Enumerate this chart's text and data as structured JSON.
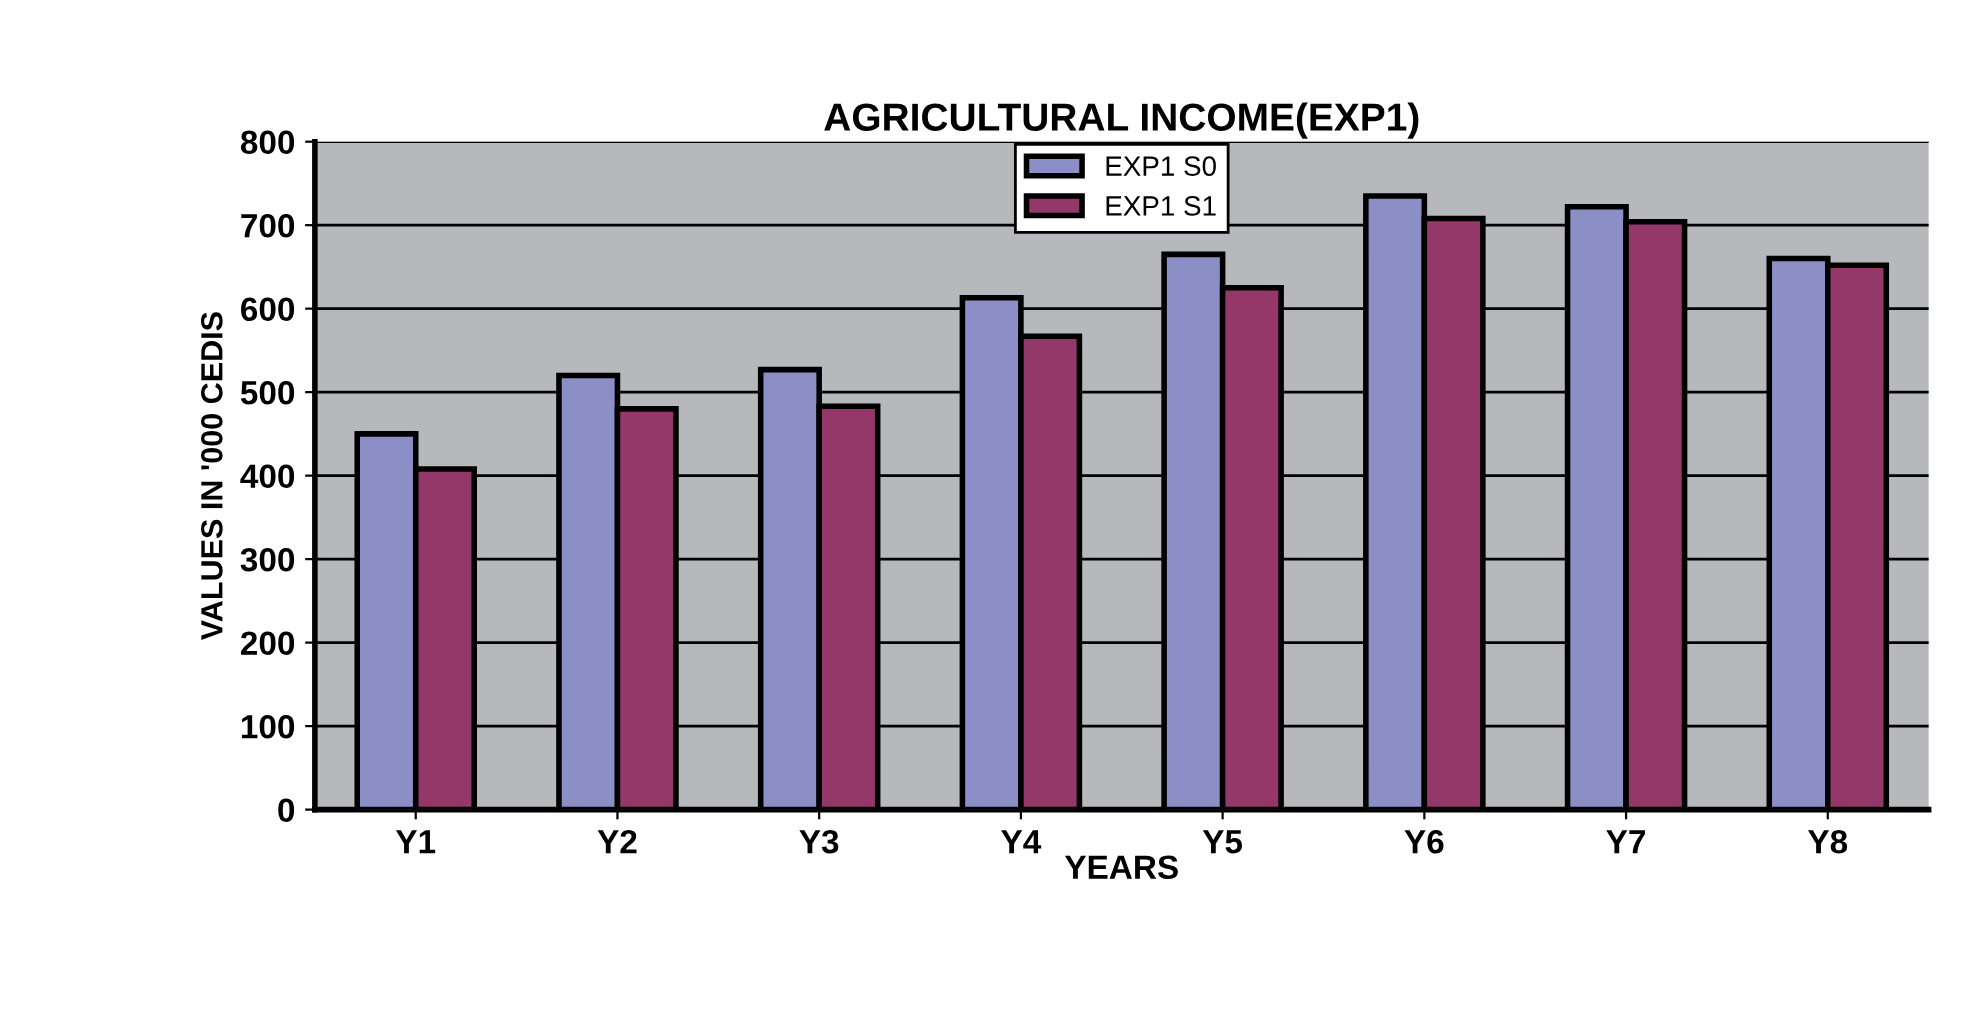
{
  "chart_data": {
    "type": "bar",
    "title": "AGRICULTURAL INCOME(EXP1)",
    "xlabel": "YEARS",
    "ylabel": "VALUES IN '000 CEDIS",
    "categories": [
      "Y1",
      "Y2",
      "Y3",
      "Y4",
      "Y5",
      "Y6",
      "Y7",
      "Y8"
    ],
    "series": [
      {
        "name": "EXP1 S0",
        "color": "#8c8fc6",
        "values": [
          450,
          520,
          527,
          613,
          665,
          735,
          722,
          660
        ]
      },
      {
        "name": "EXP1 S1",
        "color": "#933869",
        "values": [
          408,
          480,
          483,
          567,
          625,
          708,
          704,
          652
        ]
      }
    ],
    "ylim": [
      0,
      800
    ],
    "yticks": [
      0,
      100,
      200,
      300,
      400,
      500,
      600,
      700,
      800
    ],
    "grid": "y",
    "legend": "top"
  }
}
